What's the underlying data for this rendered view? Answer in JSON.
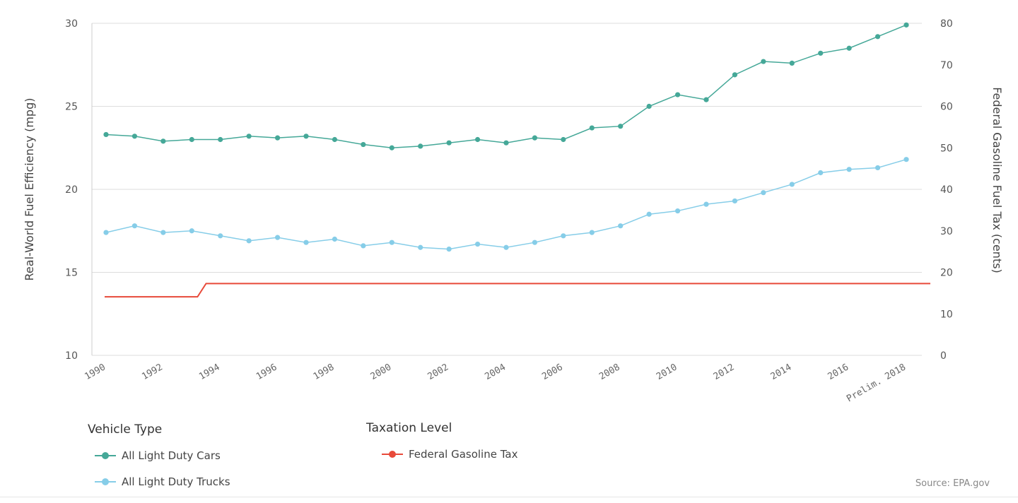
{
  "chart_data": {
    "type": "line",
    "categories": [
      "1990",
      "1991",
      "1992",
      "1993",
      "1994",
      "1995",
      "1996",
      "1997",
      "1998",
      "1999",
      "2000",
      "2001",
      "2002",
      "2003",
      "2004",
      "2005",
      "2006",
      "2007",
      "2008",
      "2009",
      "2010",
      "2011",
      "2012",
      "2013",
      "2014",
      "2015",
      "2016",
      "2017",
      "Prelim. 2018"
    ],
    "x_tick_labels": [
      "1990",
      "",
      "1992",
      "",
      "1994",
      "",
      "1996",
      "",
      "1998",
      "",
      "2000",
      "",
      "2002",
      "",
      "2004",
      "",
      "2006",
      "",
      "2008",
      "",
      "2010",
      "",
      "2012",
      "",
      "2014",
      "",
      "2016",
      "",
      "Prelim. 2018"
    ],
    "ylabel": "Real-World Fuel Efficiency (mpg)",
    "ylabel_right": "Federal Gasoline Fuel Tax (cents)",
    "ylim": [
      10,
      30
    ],
    "yticks": [
      10,
      15,
      20,
      25,
      30
    ],
    "ylim_right": [
      0,
      80
    ],
    "yticks_right": [
      0,
      10,
      20,
      30,
      40,
      50,
      60,
      70,
      80
    ],
    "grid": true,
    "series": [
      {
        "name": "All Light Duty Cars",
        "axis": "left",
        "color": "#45a898",
        "values": [
          23.3,
          23.2,
          22.9,
          23.0,
          23.0,
          23.2,
          23.1,
          23.2,
          23.0,
          22.7,
          22.5,
          22.6,
          22.8,
          23.0,
          22.8,
          23.1,
          23.0,
          23.7,
          23.8,
          25.0,
          25.7,
          25.4,
          26.9,
          27.7,
          27.6,
          28.2,
          28.5,
          29.2,
          29.9
        ]
      },
      {
        "name": "All Light Duty Trucks",
        "axis": "left",
        "color": "#86cde8",
        "values": [
          17.4,
          17.8,
          17.4,
          17.5,
          17.2,
          16.9,
          17.1,
          16.8,
          17.0,
          16.6,
          16.8,
          16.5,
          16.4,
          16.7,
          16.5,
          16.8,
          17.2,
          17.4,
          17.8,
          18.5,
          18.7,
          19.1,
          19.3,
          19.8,
          20.3,
          21.0,
          21.2,
          21.3,
          21.8
        ]
      },
      {
        "name": "Federal Gasoline Tax",
        "axis": "right",
        "color": "#e84a3a",
        "points": [
          [
            0,
            14.1
          ],
          [
            3.2,
            14.1
          ],
          [
            3.5,
            17.3
          ],
          [
            28.8,
            17.3
          ]
        ]
      }
    ],
    "legend": {
      "groups": [
        {
          "title": "Vehicle Type",
          "items": [
            "All Light Duty Cars",
            "All Light Duty Trucks"
          ]
        },
        {
          "title": "Taxation Level",
          "items": [
            "Federal Gasoline Tax"
          ]
        }
      ],
      "placement": "bottom"
    }
  },
  "source": "Source: EPA.gov"
}
